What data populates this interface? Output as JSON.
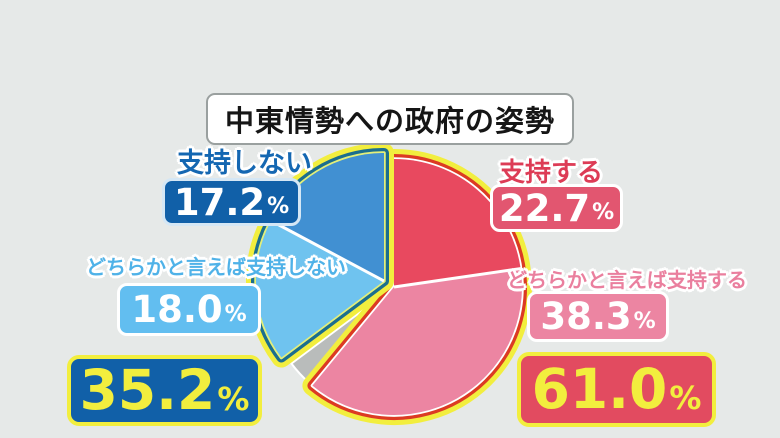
{
  "title": "中東情勢への政府の姿勢",
  "percent_sign": "%",
  "chart_data": {
    "type": "pie",
    "title": "中東情勢への政府の姿勢",
    "start_angle_deg": 0,
    "direction": "clockwise",
    "slices": [
      {
        "key": "support",
        "label": "支持する",
        "value": 22.7,
        "color": "#e8495f"
      },
      {
        "key": "somewhat-support",
        "label": "どちらかと言えば支持する",
        "value": 38.3,
        "color": "#ec85a2"
      },
      {
        "key": "no-answer",
        "label": "",
        "value": 3.8,
        "color": "#b9bcbb"
      },
      {
        "key": "somewhat-not-support",
        "label": "どちらかと言えば支持しない",
        "value": 18.0,
        "color": "#6fc3ef"
      },
      {
        "key": "not-support",
        "label": "支持しない",
        "value": 17.2,
        "color": "#4190d2"
      }
    ],
    "groups": [
      {
        "key": "support-side",
        "slice_keys": [
          "support",
          "somewhat-support"
        ],
        "total": 61.0,
        "ring_color": "#dc3a23",
        "outer_ring_color": "#f2ee3e",
        "inner_line_color": "#ffffff",
        "explode_offset": [
          0,
          0
        ]
      },
      {
        "key": "oppose-side",
        "slice_keys": [
          "somewhat-not-support",
          "not-support"
        ],
        "total": 35.2,
        "ring_color": "#1b6e8e",
        "outer_ring_color": "#f2ee3e",
        "inner_line_color": "#e3ef7a",
        "explode_offset": [
          -10,
          -6
        ]
      }
    ],
    "legend_position": "around",
    "background_color": "#e6e9e8"
  },
  "callouts": {
    "support": {
      "label": "支持する",
      "value": "22.7"
    },
    "somewhat_support": {
      "label": "どちらかと言えば支持する",
      "value": "38.3"
    },
    "not_support": {
      "label": "支持しない",
      "value": "17.2"
    },
    "somewhat_not_support": {
      "label": "どちらかと言えば支持しない",
      "value": "18.0"
    },
    "support_total": {
      "value": "61.0"
    },
    "oppose_total": {
      "value": "35.2"
    }
  }
}
